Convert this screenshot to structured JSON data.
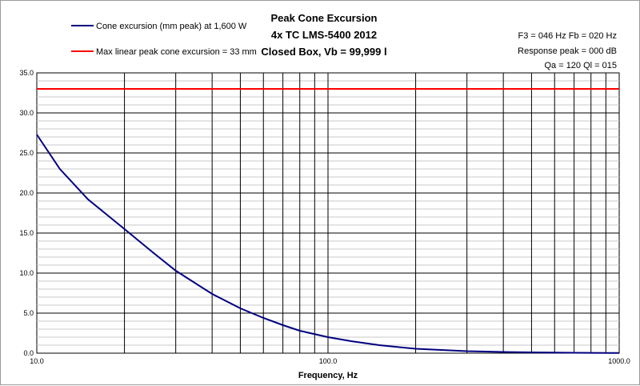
{
  "chart_data": {
    "type": "line",
    "title_lines": [
      "Peak Cone Excursion",
      "4x TC LMS-5400 2012",
      "Closed Box, Vb = 99,999 l"
    ],
    "xlabel": "Frequency, Hz",
    "ylabel": "",
    "x_scale": "log",
    "xlim": [
      10,
      1000
    ],
    "ylim": [
      0,
      35
    ],
    "x_tick_labels": [
      "10.0",
      "100.0",
      "1000.0"
    ],
    "x_ticks": [
      10,
      100,
      1000
    ],
    "y_tick_labels": [
      "0.0",
      "5.0",
      "10.0",
      "15.0",
      "20.0",
      "25.0",
      "30.0",
      "35.0"
    ],
    "y_ticks": [
      0,
      5,
      10,
      15,
      20,
      25,
      30,
      35
    ],
    "grid": true,
    "legend_position": "top-left",
    "info_lines": [
      "F3 = 046 Hz  Fb = 020 Hz",
      "Response peak = 000 dB",
      "Qa = 120  Ql = 015"
    ],
    "series": [
      {
        "name": "Cone excursion (mm peak) at 1,600 W",
        "color": "#00007f",
        "x": [
          10,
          12,
          15,
          20,
          25,
          30,
          40,
          50,
          60,
          70,
          80,
          100,
          120,
          150,
          200,
          300,
          400,
          500,
          700,
          1000
        ],
        "y": [
          27.3,
          23.0,
          19.2,
          15.5,
          12.6,
          10.3,
          7.4,
          5.6,
          4.4,
          3.5,
          2.8,
          2.0,
          1.5,
          1.0,
          0.55,
          0.25,
          0.15,
          0.1,
          0.05,
          0.02
        ]
      },
      {
        "name": "Max linear peak cone excursion = 33 mm",
        "color": "#ff0000",
        "x": [
          10,
          1000
        ],
        "y": [
          33,
          33
        ]
      }
    ]
  }
}
